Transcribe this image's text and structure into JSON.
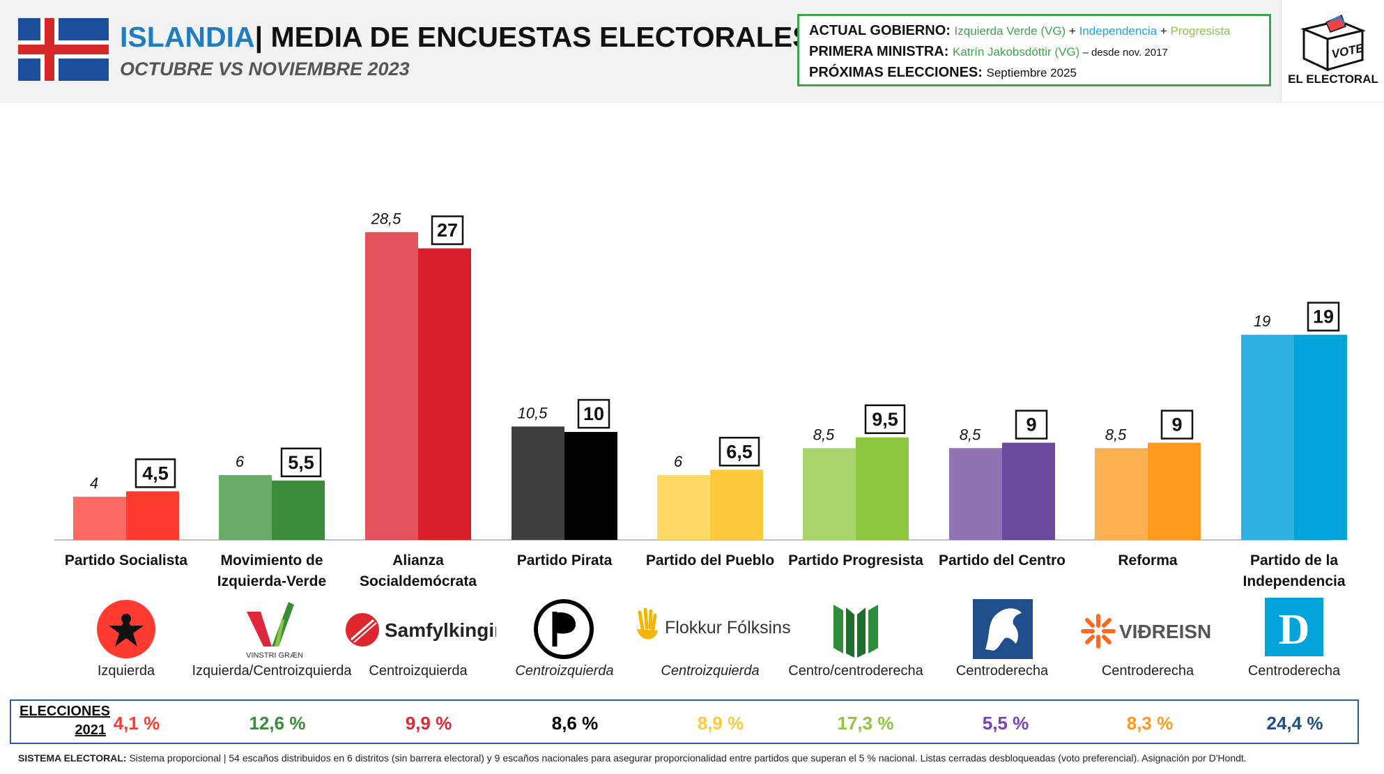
{
  "header": {
    "country": "ISLANDIA",
    "title": "| MEDIA DE ENCUESTAS ELECTORALES",
    "subtitle": "OCTUBRE VS NOVIEMBRE 2023"
  },
  "info": {
    "gov_label": "ACTUAL GOBIERNO:",
    "gov_party1": "Izquierda Verde (VG)",
    "gov_plus1": " + ",
    "gov_party2": "Independencia",
    "gov_plus2": " + ",
    "gov_party3": "Progresista",
    "pm_label": "PRIMERA MINISTRA:",
    "pm_name": "Katrín Jakobsdóttir (VG)",
    "pm_since": " – desde nov. 2017",
    "next_label": "PRÓXIMAS ELECCIONES:",
    "next_value": "Septiembre 2025"
  },
  "logo": {
    "box_text": "VOTE",
    "name": "EL ELECTORAL",
    "icon": "ballot-box-icon"
  },
  "chart_data": {
    "type": "bar",
    "categories": [
      "Partido Socialista",
      "Movimiento de Izquierda-Verde",
      "Alianza Socialdemócrata",
      "Partido Pirata",
      "Partido del Pueblo",
      "Partido Progresista",
      "Partido del Centro",
      "Reforma",
      "Partido de la Independencia"
    ],
    "series": [
      {
        "name": "Octubre",
        "values": [
          4,
          6,
          28.5,
          10.5,
          6,
          8.5,
          8.5,
          8.5,
          19
        ],
        "labels": [
          "4",
          "6",
          "28,5",
          "10,5",
          "6",
          "8,5",
          "8,5",
          "8,5",
          "19"
        ]
      },
      {
        "name": "Noviembre",
        "values": [
          4.5,
          5.5,
          27,
          10,
          6.5,
          9.5,
          9,
          9,
          19
        ],
        "labels": [
          "4,5",
          "5,5",
          "27",
          "10",
          "6,5",
          "9,5",
          "9",
          "9",
          "19"
        ]
      }
    ],
    "colors_light": [
      "#ff6b63",
      "#6aab6a",
      "#e2525c",
      "#3e3e3e",
      "#ffd966",
      "#a9d46c",
      "#8f73b3",
      "#fcb052",
      "#2eb1e0"
    ],
    "colors_dark": [
      "#ff3b30",
      "#3a8c3a",
      "#d91e2a",
      "#000000",
      "#ffc93c",
      "#8dc63f",
      "#6a4a9c",
      "#ff9a1f",
      "#00a4db"
    ],
    "ylim": [
      0,
      30
    ],
    "grid": false,
    "legend": "none"
  },
  "parties": [
    {
      "label_lines": [
        "Partido Socialista"
      ],
      "ideology": "Izquierda",
      "italic": false,
      "icon": "socialist-star-icon",
      "logo_text": ""
    },
    {
      "label_lines": [
        "Movimiento de",
        "Izquierda-Verde"
      ],
      "ideology": "Izquierda/Centroizquierda",
      "italic": false,
      "icon": "vinstri-graen-v-icon",
      "logo_text": "VINSTRI GRÆN"
    },
    {
      "label_lines": [
        "Alianza",
        "Socialdemócrata"
      ],
      "ideology": "Centroizquierda",
      "italic": false,
      "icon": "samfylkingin-rose-icon",
      "logo_text": "Samfylkingin"
    },
    {
      "label_lines": [
        "Partido Pirata"
      ],
      "ideology": "Centroizquierda",
      "italic": true,
      "icon": "pirate-flag-icon",
      "logo_text": ""
    },
    {
      "label_lines": [
        "Partido del Pueblo"
      ],
      "ideology": "Centroizquierda",
      "italic": true,
      "icon": "flokkur-folksins-hand-icon",
      "logo_text": "Flokkur Fólksins"
    },
    {
      "label_lines": [
        "Partido Progresista"
      ],
      "ideology": "Centro/centroderecha",
      "italic": false,
      "icon": "progressive-wheat-icon",
      "logo_text": ""
    },
    {
      "label_lines": [
        "Partido del Centro"
      ],
      "ideology": "Centroderecha",
      "italic": false,
      "icon": "centre-horse-icon",
      "logo_text": ""
    },
    {
      "label_lines": [
        "Reforma"
      ],
      "ideology": "Centroderecha",
      "italic": false,
      "icon": "vidreisn-sun-icon",
      "logo_text": "VIÐREISN"
    },
    {
      "label_lines": [
        "Partido de la",
        "Independencia"
      ],
      "ideology": "Centroderecha",
      "italic": false,
      "icon": "independence-d-icon",
      "logo_text": "D"
    }
  ],
  "elections": {
    "label_line1": "ELECCIONES",
    "label_line2": "2021",
    "values": [
      "4,1 %",
      "12,6 %",
      "9,9 %",
      "8,6 %",
      "8,9 %",
      "17,3 %",
      "5,5 %",
      "8,3 %",
      "24,4 %"
    ],
    "colors": [
      "#ff3b30",
      "#3a8c3a",
      "#e0262f",
      "#000000",
      "#ffc93c",
      "#8dc63f",
      "#7a3fc0",
      "#ff9a1f",
      "#1f4e8c"
    ]
  },
  "footer": {
    "label": "SISTEMA ELECTORAL:",
    "text": " Sistema proporcional | 54 escaños distribuidos en 6 distritos (sin barrera electoral) y 9 escaños nacionales para asegurar proporcionalidad entre partidos que superan el 5 % nacional. Listas cerradas desbloqueadas (voto preferencial). Asignación por D'Hondt."
  }
}
